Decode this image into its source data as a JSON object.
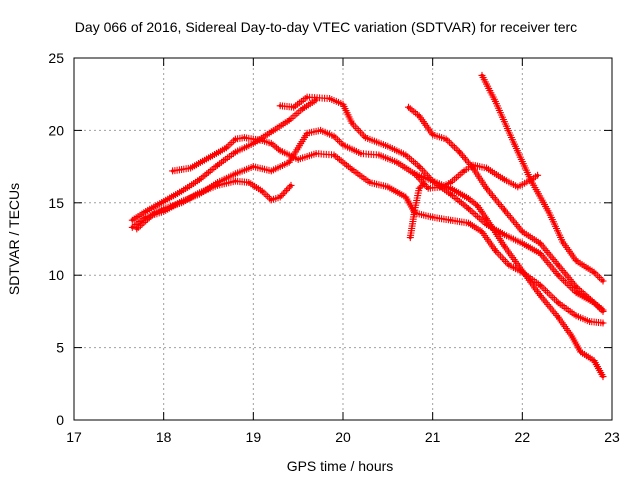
{
  "chart_data": {
    "type": "line",
    "title": "Day 066 of 2016, Sidereal Day-to-day VTEC variation (SDTVAR) for receiver terc",
    "xlabel": "GPS time / hours",
    "ylabel": "SDTVAR / TECUs",
    "xlim": [
      17,
      23
    ],
    "ylim": [
      0,
      25
    ],
    "xticks": [
      17,
      18,
      19,
      20,
      21,
      22,
      23
    ],
    "yticks": [
      0,
      5,
      10,
      15,
      20,
      25
    ],
    "grid": true,
    "marker": "plus",
    "series_color": "#ff0000",
    "series": [
      {
        "name": "track-1",
        "points": [
          [
            17.65,
            13.8
          ],
          [
            17.8,
            14.4
          ],
          [
            18.0,
            15.1
          ],
          [
            18.2,
            15.8
          ],
          [
            18.4,
            16.6
          ],
          [
            18.6,
            17.6
          ],
          [
            18.8,
            18.5
          ],
          [
            19.0,
            19.1
          ],
          [
            19.2,
            19.9
          ],
          [
            19.4,
            20.7
          ],
          [
            19.55,
            21.5
          ],
          [
            19.7,
            22.1
          ]
        ]
      },
      {
        "name": "track-2",
        "points": [
          [
            17.65,
            13.3
          ],
          [
            17.8,
            14.0
          ],
          [
            18.0,
            14.4
          ],
          [
            18.2,
            15.1
          ],
          [
            18.4,
            15.6
          ],
          [
            18.6,
            16.4
          ],
          [
            18.8,
            17.0
          ],
          [
            19.0,
            17.5
          ],
          [
            19.2,
            17.2
          ],
          [
            19.4,
            17.8
          ],
          [
            19.6,
            19.8
          ],
          [
            19.75,
            20.0
          ],
          [
            19.9,
            19.6
          ],
          [
            20.0,
            19.0
          ],
          [
            20.2,
            18.4
          ],
          [
            20.4,
            18.3
          ],
          [
            20.6,
            17.8
          ],
          [
            20.8,
            17.0
          ],
          [
            21.0,
            16.5
          ],
          [
            21.2,
            15.6
          ],
          [
            21.4,
            14.6
          ],
          [
            21.6,
            13.5
          ],
          [
            21.8,
            12.8
          ],
          [
            22.0,
            12.2
          ],
          [
            22.2,
            11.5
          ],
          [
            22.4,
            10.0
          ],
          [
            22.6,
            8.8
          ],
          [
            22.8,
            8.1
          ],
          [
            22.9,
            7.5
          ]
        ]
      },
      {
        "name": "track-3",
        "points": [
          [
            17.7,
            13.2
          ],
          [
            17.9,
            14.3
          ],
          [
            18.0,
            14.6
          ],
          [
            18.2,
            15.0
          ],
          [
            18.4,
            15.7
          ],
          [
            18.6,
            16.2
          ],
          [
            18.8,
            16.5
          ],
          [
            18.95,
            16.4
          ],
          [
            19.1,
            15.8
          ],
          [
            19.2,
            15.2
          ],
          [
            19.3,
            15.4
          ],
          [
            19.42,
            16.2
          ]
        ]
      },
      {
        "name": "track-4",
        "points": [
          [
            18.1,
            17.2
          ],
          [
            18.3,
            17.4
          ],
          [
            18.5,
            18.1
          ],
          [
            18.7,
            18.8
          ],
          [
            18.8,
            19.4
          ],
          [
            18.9,
            19.5
          ],
          [
            19.1,
            19.3
          ],
          [
            19.2,
            19.1
          ],
          [
            19.3,
            18.6
          ],
          [
            19.5,
            18.0
          ],
          [
            19.7,
            18.4
          ],
          [
            19.9,
            18.3
          ],
          [
            20.1,
            17.3
          ],
          [
            20.3,
            16.4
          ],
          [
            20.5,
            16.1
          ],
          [
            20.7,
            15.4
          ],
          [
            20.8,
            14.3
          ],
          [
            21.0,
            14.0
          ],
          [
            21.2,
            13.8
          ],
          [
            21.4,
            13.6
          ],
          [
            21.55,
            13.0
          ],
          [
            21.7,
            11.7
          ],
          [
            21.85,
            10.7
          ],
          [
            22.0,
            10.2
          ],
          [
            22.2,
            9.3
          ],
          [
            22.4,
            8.1
          ],
          [
            22.6,
            7.2
          ],
          [
            22.75,
            6.8
          ],
          [
            22.9,
            6.7
          ]
        ]
      },
      {
        "name": "track-5",
        "points": [
          [
            19.3,
            21.7
          ],
          [
            19.45,
            21.6
          ],
          [
            19.6,
            22.3
          ],
          [
            19.85,
            22.2
          ],
          [
            20.0,
            21.8
          ],
          [
            20.1,
            20.5
          ],
          [
            20.25,
            19.5
          ],
          [
            20.5,
            18.9
          ],
          [
            20.7,
            18.3
          ],
          [
            20.85,
            17.5
          ],
          [
            21.0,
            16.5
          ],
          [
            21.2,
            16.0
          ],
          [
            21.4,
            15.3
          ],
          [
            21.5,
            14.8
          ],
          [
            21.6,
            13.9
          ],
          [
            21.8,
            12.0
          ],
          [
            22.0,
            10.3
          ],
          [
            22.2,
            8.6
          ],
          [
            22.4,
            7.1
          ],
          [
            22.55,
            5.8
          ],
          [
            22.65,
            4.7
          ],
          [
            22.8,
            4.1
          ],
          [
            22.9,
            3.0
          ]
        ]
      },
      {
        "name": "track-6",
        "points": [
          [
            20.73,
            21.6
          ],
          [
            20.85,
            21.0
          ],
          [
            21.0,
            19.7
          ],
          [
            21.15,
            19.4
          ],
          [
            21.3,
            18.5
          ],
          [
            21.45,
            17.4
          ],
          [
            21.6,
            16.0
          ],
          [
            21.8,
            14.5
          ],
          [
            22.0,
            13.0
          ],
          [
            22.2,
            12.2
          ],
          [
            22.4,
            10.7
          ],
          [
            22.6,
            9.2
          ],
          [
            22.8,
            8.1
          ],
          [
            22.9,
            7.6
          ]
        ]
      },
      {
        "name": "track-7",
        "points": [
          [
            20.8,
            17.0
          ],
          [
            20.95,
            16.0
          ],
          [
            21.1,
            16.1
          ],
          [
            21.2,
            16.4
          ],
          [
            21.35,
            17.2
          ],
          [
            21.45,
            17.6
          ],
          [
            21.6,
            17.4
          ],
          [
            21.8,
            16.6
          ],
          [
            21.95,
            16.1
          ],
          [
            22.1,
            16.6
          ],
          [
            22.17,
            16.9
          ]
        ]
      },
      {
        "name": "track-8",
        "points": [
          [
            21.55,
            23.8
          ],
          [
            21.7,
            22.0
          ],
          [
            21.9,
            19.2
          ],
          [
            22.1,
            16.5
          ],
          [
            22.3,
            14.3
          ],
          [
            22.45,
            12.3
          ],
          [
            22.6,
            11.0
          ],
          [
            22.8,
            10.2
          ],
          [
            22.9,
            9.6
          ]
        ]
      },
      {
        "name": "track-9",
        "points": [
          [
            20.75,
            12.6
          ],
          [
            20.8,
            14.5
          ],
          [
            20.85,
            16.0
          ],
          [
            20.9,
            16.3
          ]
        ]
      }
    ]
  }
}
